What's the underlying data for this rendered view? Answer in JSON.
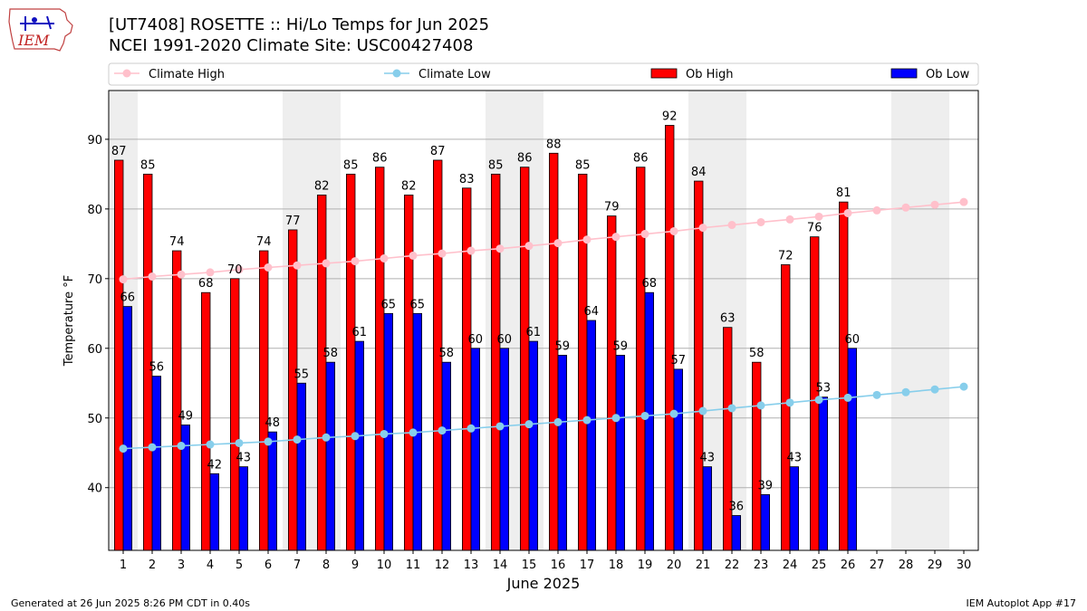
{
  "header": {
    "title_line1": "[UT7408] ROSETTE :: Hi/Lo Temps for Jun 2025",
    "title_line2": "NCEI 1991-2020 Climate Site: USC00427408"
  },
  "logo": {
    "text": "IEM",
    "icon": "iem-logo-icon"
  },
  "footer": {
    "left": "Generated at 26 Jun 2025 8:26 PM CDT in 0.40s",
    "right": "IEM Autoplot App #17"
  },
  "colors": {
    "ob_high": "#ff0000",
    "ob_low": "#0000ff",
    "climate_high": "#ffc0cb",
    "climate_low": "#87ceeb",
    "weekend_shade": "#eeeeee",
    "grid": "#b0b0b0"
  },
  "chart_data": {
    "type": "bar",
    "xlabel": "June 2025",
    "ylabel": "Temperature °F",
    "xlim": [
      0.5,
      30.5
    ],
    "ylim": [
      31,
      97
    ],
    "yticks": [
      40,
      50,
      60,
      70,
      80,
      90
    ],
    "grid": "horizontal",
    "legend_position": "top",
    "legend": [
      "Climate High",
      "Climate Low",
      "Ob High",
      "Ob Low"
    ],
    "weekend_shaded_days": [
      1,
      7,
      8,
      14,
      15,
      21,
      22,
      28,
      29
    ],
    "days": [
      1,
      2,
      3,
      4,
      5,
      6,
      7,
      8,
      9,
      10,
      11,
      12,
      13,
      14,
      15,
      16,
      17,
      18,
      19,
      20,
      21,
      22,
      23,
      24,
      25,
      26,
      27,
      28,
      29,
      30
    ],
    "series": [
      {
        "name": "Ob High",
        "kind": "bar",
        "values": [
          87,
          85,
          74,
          68,
          70,
          74,
          77,
          82,
          85,
          86,
          82,
          87,
          83,
          85,
          86,
          88,
          85,
          79,
          86,
          92,
          84,
          63,
          58,
          72,
          76,
          81
        ]
      },
      {
        "name": "Ob Low",
        "kind": "bar",
        "values": [
          66,
          56,
          49,
          42,
          43,
          48,
          55,
          58,
          61,
          65,
          65,
          58,
          60,
          60,
          61,
          59,
          64,
          59,
          68,
          57,
          43,
          36,
          39,
          43,
          53,
          60
        ]
      },
      {
        "name": "Climate High",
        "kind": "line",
        "values": [
          69.9,
          70.3,
          70.6,
          70.9,
          71.3,
          71.6,
          71.9,
          72.2,
          72.5,
          72.9,
          73.3,
          73.6,
          74.0,
          74.3,
          74.7,
          75.1,
          75.6,
          76.0,
          76.4,
          76.8,
          77.3,
          77.7,
          78.1,
          78.5,
          78.9,
          79.4,
          79.8,
          80.2,
          80.6,
          81.0
        ]
      },
      {
        "name": "Climate Low",
        "kind": "line",
        "values": [
          45.6,
          45.8,
          46.0,
          46.2,
          46.4,
          46.6,
          46.9,
          47.2,
          47.4,
          47.7,
          47.9,
          48.2,
          48.5,
          48.8,
          49.1,
          49.4,
          49.7,
          50.0,
          50.3,
          50.6,
          51.0,
          51.4,
          51.8,
          52.2,
          52.6,
          52.9,
          53.3,
          53.7,
          54.1,
          54.5
        ]
      }
    ]
  }
}
